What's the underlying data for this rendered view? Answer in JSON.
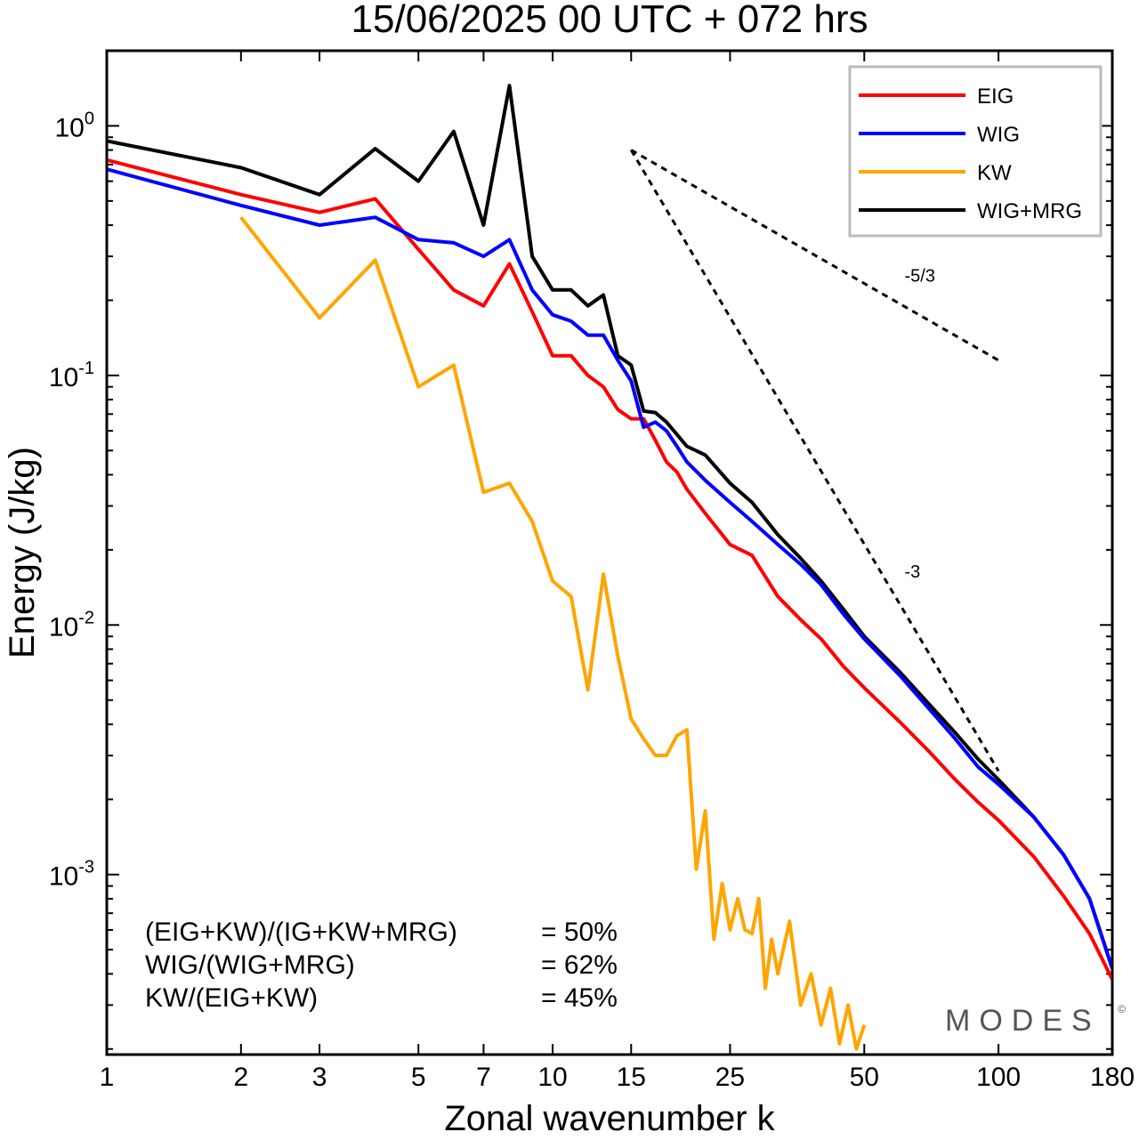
{
  "chart_data": {
    "type": "line",
    "title": "15/06/2025  00 UTC  + 072 hrs",
    "xlabel": "Zonal wavenumber k",
    "ylabel": "Energy (J/kg)",
    "xscale": "log",
    "yscale": "log",
    "xlim": [
      1,
      180
    ],
    "ylim": [
      0.00019,
      2.0
    ],
    "xticks": [
      1,
      2,
      3,
      5,
      7,
      10,
      15,
      25,
      50,
      100,
      180
    ],
    "xtick_labels": [
      "1",
      "2",
      "3",
      "5",
      "7",
      "10",
      "15",
      "25",
      "50",
      "100",
      "180"
    ],
    "yticks": [
      {
        "value": 1,
        "base": "10",
        "exp": "0"
      },
      {
        "value": 0.1,
        "base": "10",
        "exp": "-1"
      },
      {
        "value": 0.01,
        "base": "10",
        "exp": "-2"
      },
      {
        "value": 0.001,
        "base": "10",
        "exp": "-3"
      }
    ],
    "legend_position": "top-right",
    "series": [
      {
        "name": "EIG",
        "color": "#ff0000",
        "x": [
          1,
          2,
          3,
          4,
          5,
          6,
          7,
          8,
          9,
          10,
          11,
          12,
          13,
          14,
          15,
          16,
          17,
          18,
          19,
          20,
          22,
          25,
          28,
          32,
          36,
          40,
          45,
          50,
          60,
          70,
          80,
          90,
          100,
          120,
          140,
          160,
          180
        ],
        "y": [
          0.73,
          0.53,
          0.45,
          0.51,
          0.32,
          0.22,
          0.19,
          0.28,
          0.18,
          0.12,
          0.12,
          0.1,
          0.09,
          0.073,
          0.067,
          0.067,
          0.055,
          0.045,
          0.041,
          0.035,
          0.028,
          0.021,
          0.019,
          0.013,
          0.0105,
          0.0088,
          0.0068,
          0.0056,
          0.0041,
          0.0031,
          0.0024,
          0.00195,
          0.00165,
          0.00118,
          0.00082,
          0.00058,
          0.00038
        ]
      },
      {
        "name": "WIG",
        "color": "#0000ff",
        "x": [
          1,
          2,
          3,
          4,
          5,
          6,
          7,
          8,
          9,
          10,
          11,
          12,
          13,
          14,
          15,
          16,
          17,
          18,
          19,
          20,
          22,
          25,
          28,
          32,
          36,
          40,
          45,
          50,
          60,
          70,
          80,
          90,
          100,
          120,
          140,
          160,
          180
        ],
        "y": [
          0.67,
          0.48,
          0.4,
          0.43,
          0.35,
          0.34,
          0.3,
          0.35,
          0.22,
          0.175,
          0.165,
          0.145,
          0.145,
          0.115,
          0.095,
          0.062,
          0.065,
          0.06,
          0.052,
          0.045,
          0.038,
          0.031,
          0.026,
          0.021,
          0.0175,
          0.0145,
          0.011,
          0.0088,
          0.0063,
          0.0046,
          0.0035,
          0.0027,
          0.0023,
          0.0017,
          0.0012,
          0.0008,
          0.00042
        ]
      },
      {
        "name": "KW",
        "color": "#ffa500",
        "x": [
          2,
          3,
          4,
          5,
          6,
          7,
          8,
          9,
          10,
          11,
          12,
          13,
          14,
          15,
          16,
          17,
          18,
          19,
          20,
          21,
          22,
          23,
          24,
          25,
          26,
          27,
          28,
          29,
          30,
          31,
          32,
          34,
          36,
          38,
          40,
          42,
          44,
          46,
          48,
          50
        ],
        "y": [
          0.43,
          0.17,
          0.29,
          0.09,
          0.11,
          0.034,
          0.037,
          0.026,
          0.015,
          0.013,
          0.0055,
          0.016,
          0.0075,
          0.0042,
          0.0035,
          0.003,
          0.003,
          0.0036,
          0.0038,
          0.00105,
          0.0018,
          0.00055,
          0.00092,
          0.0006,
          0.0008,
          0.0006,
          0.00058,
          0.0008,
          0.00035,
          0.00055,
          0.0004,
          0.00065,
          0.0003,
          0.0004,
          0.00025,
          0.00035,
          0.00021,
          0.0003,
          0.0002,
          0.00025
        ]
      },
      {
        "name": "WIG+MRG",
        "color": "#000000",
        "x": [
          1,
          2,
          3,
          4,
          5,
          6,
          7,
          8,
          9,
          10,
          11,
          12,
          13,
          14,
          15,
          16,
          17,
          18,
          19,
          20,
          22,
          25,
          28,
          32,
          36,
          40,
          45,
          50,
          60,
          70,
          80,
          90,
          100,
          120,
          140,
          160,
          180
        ],
        "y": [
          0.87,
          0.68,
          0.53,
          0.81,
          0.6,
          0.95,
          0.4,
          1.45,
          0.3,
          0.22,
          0.22,
          0.19,
          0.21,
          0.12,
          0.11,
          0.072,
          0.071,
          0.065,
          0.058,
          0.052,
          0.048,
          0.037,
          0.031,
          0.023,
          0.0185,
          0.015,
          0.0115,
          0.009,
          0.0065,
          0.0048,
          0.0037,
          0.0029,
          0.0024,
          0.0017,
          0.0012,
          0.0008,
          0.00042
        ]
      }
    ],
    "reference_lines": [
      {
        "label": "-5/3",
        "x": [
          15,
          100
        ],
        "y": [
          0.8,
          0.115
        ]
      },
      {
        "label": "-3",
        "x": [
          15,
          100
        ],
        "y": [
          0.8,
          0.0026
        ]
      }
    ],
    "stats": [
      {
        "label": "(EIG+KW)/(IG+KW+MRG)",
        "value": "= 50%"
      },
      {
        "label": "WIG/(WIG+MRG)",
        "value": "= 62%"
      },
      {
        "label": "KW/(EIG+KW)",
        "value": "= 45%"
      }
    ],
    "watermark": "MODES",
    "watermark_mark": "©"
  }
}
